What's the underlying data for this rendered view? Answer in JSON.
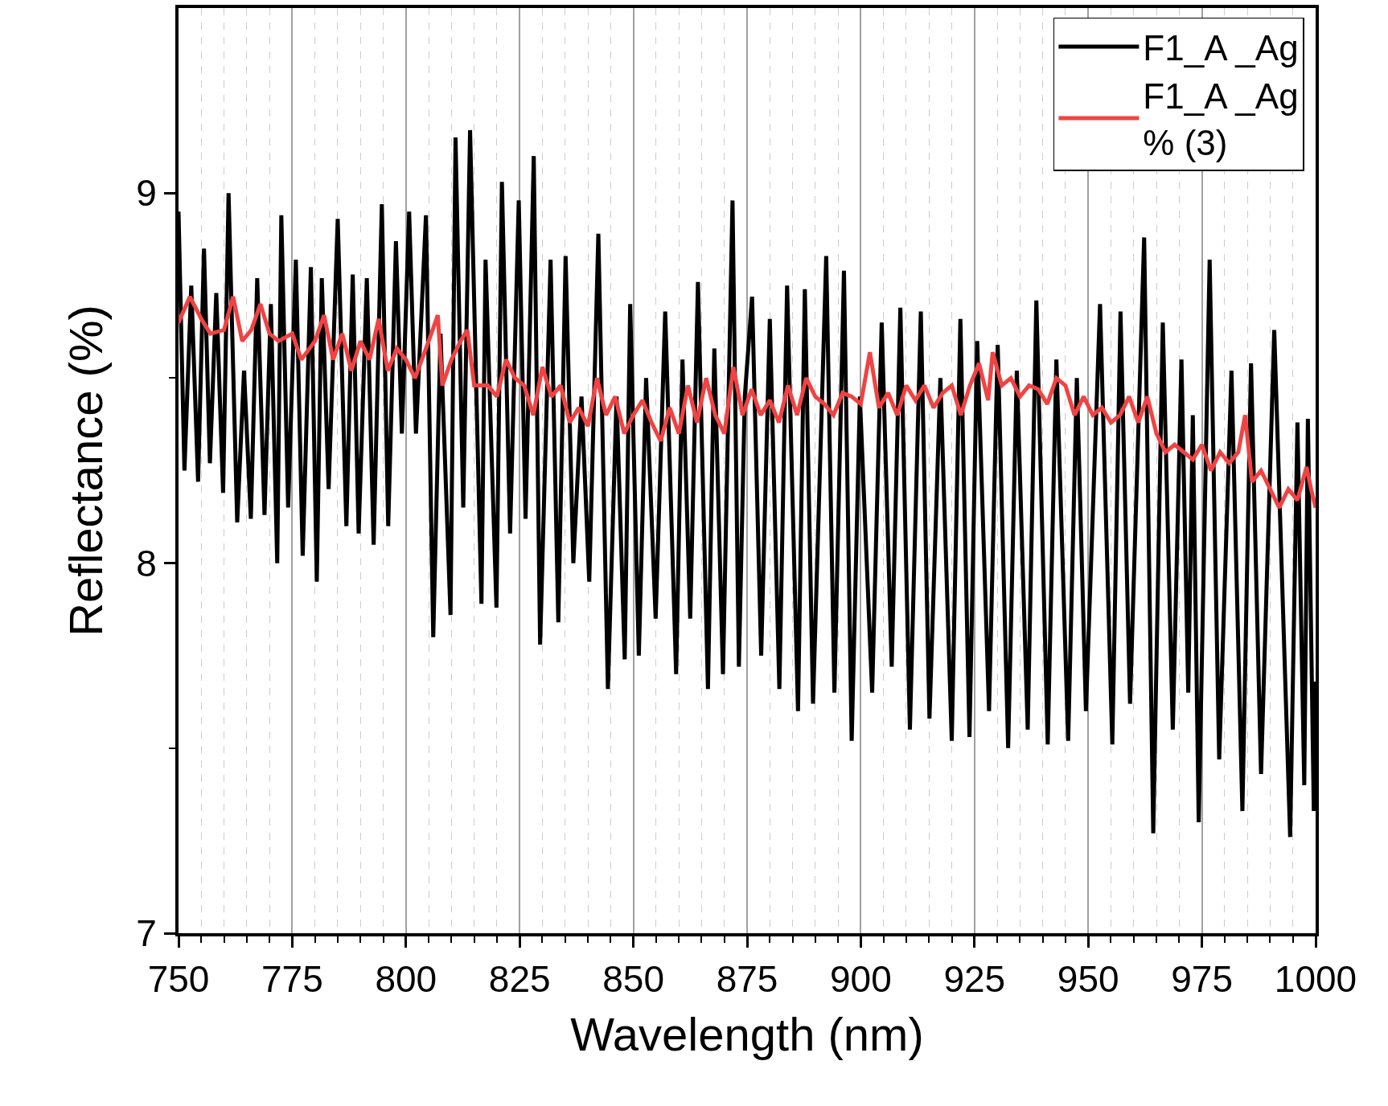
{
  "chart_data": {
    "type": "line",
    "xlabel": "Wavelength (nm)",
    "ylabel": "Reflectance (%)",
    "xlim": [
      750,
      1000
    ],
    "ylim": [
      7,
      9.5
    ],
    "xticks": [
      750,
      {
        "value": 755,
        "label": null
      },
      {
        "value": 760,
        "label": null
      },
      {
        "value": 765,
        "label": null
      },
      {
        "value": 770,
        "label": null
      },
      775,
      {
        "value": 780,
        "label": null
      },
      {
        "value": 785,
        "label": null
      },
      {
        "value": 790,
        "label": null
      },
      {
        "value": 795,
        "label": null
      },
      800,
      {
        "value": 805,
        "label": null
      },
      {
        "value": 810,
        "label": null
      },
      {
        "value": 815,
        "label": null
      },
      {
        "value": 820,
        "label": null
      },
      825,
      {
        "value": 830,
        "label": null
      },
      {
        "value": 835,
        "label": null
      },
      {
        "value": 840,
        "label": null
      },
      {
        "value": 845,
        "label": null
      },
      850,
      {
        "value": 855,
        "label": null
      },
      {
        "value": 860,
        "label": null
      },
      {
        "value": 865,
        "label": null
      },
      {
        "value": 870,
        "label": null
      },
      875,
      {
        "value": 880,
        "label": null
      },
      {
        "value": 885,
        "label": null
      },
      {
        "value": 890,
        "label": null
      },
      {
        "value": 895,
        "label": null
      },
      900,
      {
        "value": 905,
        "label": null
      },
      {
        "value": 910,
        "label": null
      },
      {
        "value": 915,
        "label": null
      },
      {
        "value": 920,
        "label": null
      },
      925,
      {
        "value": 930,
        "label": null
      },
      {
        "value": 935,
        "label": null
      },
      {
        "value": 940,
        "label": null
      },
      {
        "value": 945,
        "label": null
      },
      950,
      {
        "value": 955,
        "label": null
      },
      {
        "value": 960,
        "label": null
      },
      {
        "value": 965,
        "label": null
      },
      {
        "value": 970,
        "label": null
      },
      975,
      {
        "value": 980,
        "label": null
      },
      {
        "value": 985,
        "label": null
      },
      {
        "value": 990,
        "label": null
      },
      {
        "value": 995,
        "label": null
      },
      1000
    ],
    "yticks": [
      7,
      {
        "value": 7.5,
        "label": null
      },
      8,
      {
        "value": 8.5,
        "label": null
      },
      9
    ],
    "grid": "x",
    "legend": "top right",
    "line_style": "solid",
    "series": [
      {
        "name": "F1_A _Ag",
        "color": "#000000",
        "x": [
          750,
          751.3,
          752.8,
          754.3,
          755.6,
          756.9,
          758.3,
          759.8,
          761.0,
          762.9,
          764.4,
          765.9,
          767.3,
          768.9,
          770.3,
          771.7,
          772.6,
          774.1,
          775.8,
          777.3,
          779.1,
          780.4,
          781.5,
          783.0,
          785.0,
          786.9,
          788.3,
          789.6,
          791.4,
          792.9,
          794.7,
          796.1,
          797.8,
          799.1,
          800.7,
          802.2,
          804.4,
          806.0,
          807.6,
          809.8,
          810.9,
          812.6,
          814.1,
          816.6,
          817.5,
          819.9,
          821.1,
          822.9,
          824.8,
          826.3,
          828.1,
          829.5,
          831.8,
          833.5,
          835.1,
          836.8,
          838.6,
          840.3,
          842.3,
          844.4,
          846.3,
          848.1,
          849.3,
          851.2,
          852.8,
          854.9,
          857.0,
          859.4,
          860.8,
          862.5,
          864.2,
          866.4,
          867.8,
          869.7,
          871.8,
          873.2,
          874.5,
          876.1,
          878.1,
          880.0,
          882.1,
          883.8,
          886.2,
          887.7,
          889.5,
          892.4,
          894.2,
          896.3,
          898.0,
          899.8,
          902.5,
          904.6,
          906.8,
          908.7,
          910.8,
          913.2,
          915.1,
          917.5,
          920.0,
          921.9,
          923.9,
          925.6,
          928.2,
          930.1,
          932.4,
          934.3,
          936.7,
          938.6,
          941.1,
          943.0,
          945.6,
          947.5,
          949.5,
          952.6,
          955.3,
          957.1,
          959.2,
          962.3,
          964.3,
          966.4,
          968.6,
          970.5,
          972.0,
          973.0,
          974.3,
          976.7,
          978.8,
          981.5,
          983.9,
          985.8,
          988.0,
          990.9,
          994.4,
          996.0,
          997.5,
          998.3,
          999.6,
          1000
        ],
        "values": [
          8.95,
          8.25,
          8.75,
          8.22,
          8.85,
          8.27,
          8.73,
          8.19,
          9.0,
          8.11,
          8.52,
          8.12,
          8.77,
          8.13,
          8.7,
          8.0,
          8.94,
          8.15,
          8.82,
          8.02,
          8.8,
          7.95,
          8.77,
          8.2,
          8.93,
          8.1,
          8.78,
          8.08,
          8.77,
          8.05,
          8.97,
          8.1,
          8.87,
          8.35,
          8.95,
          8.35,
          8.94,
          7.8,
          8.62,
          7.86,
          9.15,
          8.15,
          9.17,
          7.89,
          8.82,
          7.88,
          9.03,
          8.08,
          8.98,
          8.12,
          9.1,
          7.78,
          8.82,
          7.84,
          8.83,
          8.0,
          8.45,
          7.95,
          8.89,
          7.66,
          8.45,
          7.74,
          8.7,
          7.75,
          8.5,
          7.85,
          8.68,
          7.7,
          8.55,
          7.85,
          8.76,
          7.66,
          8.58,
          7.7,
          8.98,
          7.72,
          8.45,
          8.72,
          7.75,
          8.66,
          7.66,
          8.75,
          7.6,
          8.74,
          7.62,
          8.83,
          7.65,
          8.79,
          7.52,
          8.45,
          7.65,
          8.65,
          7.72,
          8.69,
          7.55,
          8.68,
          7.58,
          8.5,
          7.52,
          8.66,
          7.53,
          8.6,
          7.6,
          8.59,
          7.5,
          8.52,
          7.55,
          8.71,
          7.51,
          8.55,
          7.52,
          8.5,
          7.6,
          8.7,
          7.51,
          8.68,
          7.62,
          8.88,
          7.27,
          8.65,
          7.55,
          8.55,
          7.65,
          8.4,
          7.3,
          8.82,
          7.47,
          8.52,
          7.33,
          8.54,
          7.43,
          8.63,
          7.26,
          8.38,
          7.4,
          8.39,
          7.33,
          7.68
        ]
      },
      {
        "name": "F1_A _Ag % (3)",
        "color": "#f04343",
        "x": [
          750,
          752.5,
          755,
          757,
          760,
          762,
          764,
          766,
          768,
          770,
          772,
          775,
          777,
          780,
          782,
          784,
          786,
          788,
          790,
          792,
          794,
          796,
          798,
          800,
          802,
          805,
          807,
          808,
          810,
          812,
          813.5,
          815,
          818,
          820,
          822,
          824,
          826,
          828,
          830,
          832,
          834,
          836,
          838,
          840,
          842,
          844,
          846,
          848,
          850,
          852,
          854,
          856,
          858,
          860,
          862,
          864,
          866,
          868,
          870,
          872,
          874,
          876,
          878,
          880,
          882,
          884,
          886,
          888,
          890,
          892,
          894,
          896,
          898,
          900,
          902,
          904,
          906,
          908,
          910,
          912,
          914,
          916,
          918,
          920,
          922,
          924,
          926,
          928,
          929,
          931,
          933,
          935,
          937,
          939,
          941,
          943,
          945,
          947,
          949,
          951,
          953,
          955,
          957,
          959,
          961,
          963,
          965,
          967,
          969,
          971,
          973,
          975,
          977,
          979,
          981,
          983,
          984.5,
          986,
          988,
          990,
          992,
          994,
          996,
          998,
          999,
          1000
        ],
        "values": [
          8.65,
          8.72,
          8.66,
          8.62,
          8.63,
          8.72,
          8.6,
          8.63,
          8.7,
          8.62,
          8.6,
          8.62,
          8.55,
          8.6,
          8.67,
          8.55,
          8.62,
          8.52,
          8.6,
          8.55,
          8.66,
          8.52,
          8.58,
          8.55,
          8.5,
          8.6,
          8.67,
          8.48,
          8.55,
          8.6,
          8.63,
          8.48,
          8.48,
          8.45,
          8.55,
          8.5,
          8.48,
          8.4,
          8.53,
          8.45,
          8.48,
          8.38,
          8.42,
          8.37,
          8.5,
          8.4,
          8.45,
          8.35,
          8.4,
          8.44,
          8.38,
          8.33,
          8.42,
          8.35,
          8.48,
          8.38,
          8.5,
          8.4,
          8.35,
          8.53,
          8.4,
          8.47,
          8.4,
          8.44,
          8.38,
          8.48,
          8.4,
          8.5,
          8.45,
          8.43,
          8.4,
          8.46,
          8.45,
          8.43,
          8.57,
          8.42,
          8.46,
          8.4,
          8.48,
          8.44,
          8.48,
          8.42,
          8.46,
          8.48,
          8.4,
          8.48,
          8.54,
          8.44,
          8.57,
          8.48,
          8.5,
          8.45,
          8.48,
          8.47,
          8.43,
          8.5,
          8.48,
          8.4,
          8.45,
          8.4,
          8.42,
          8.38,
          8.4,
          8.45,
          8.38,
          8.45,
          8.35,
          8.3,
          8.32,
          8.3,
          8.28,
          8.32,
          8.25,
          8.3,
          8.27,
          8.3,
          8.4,
          8.22,
          8.25,
          8.2,
          8.15,
          8.2,
          8.17,
          8.26,
          8.2,
          8.15
        ]
      }
    ]
  }
}
